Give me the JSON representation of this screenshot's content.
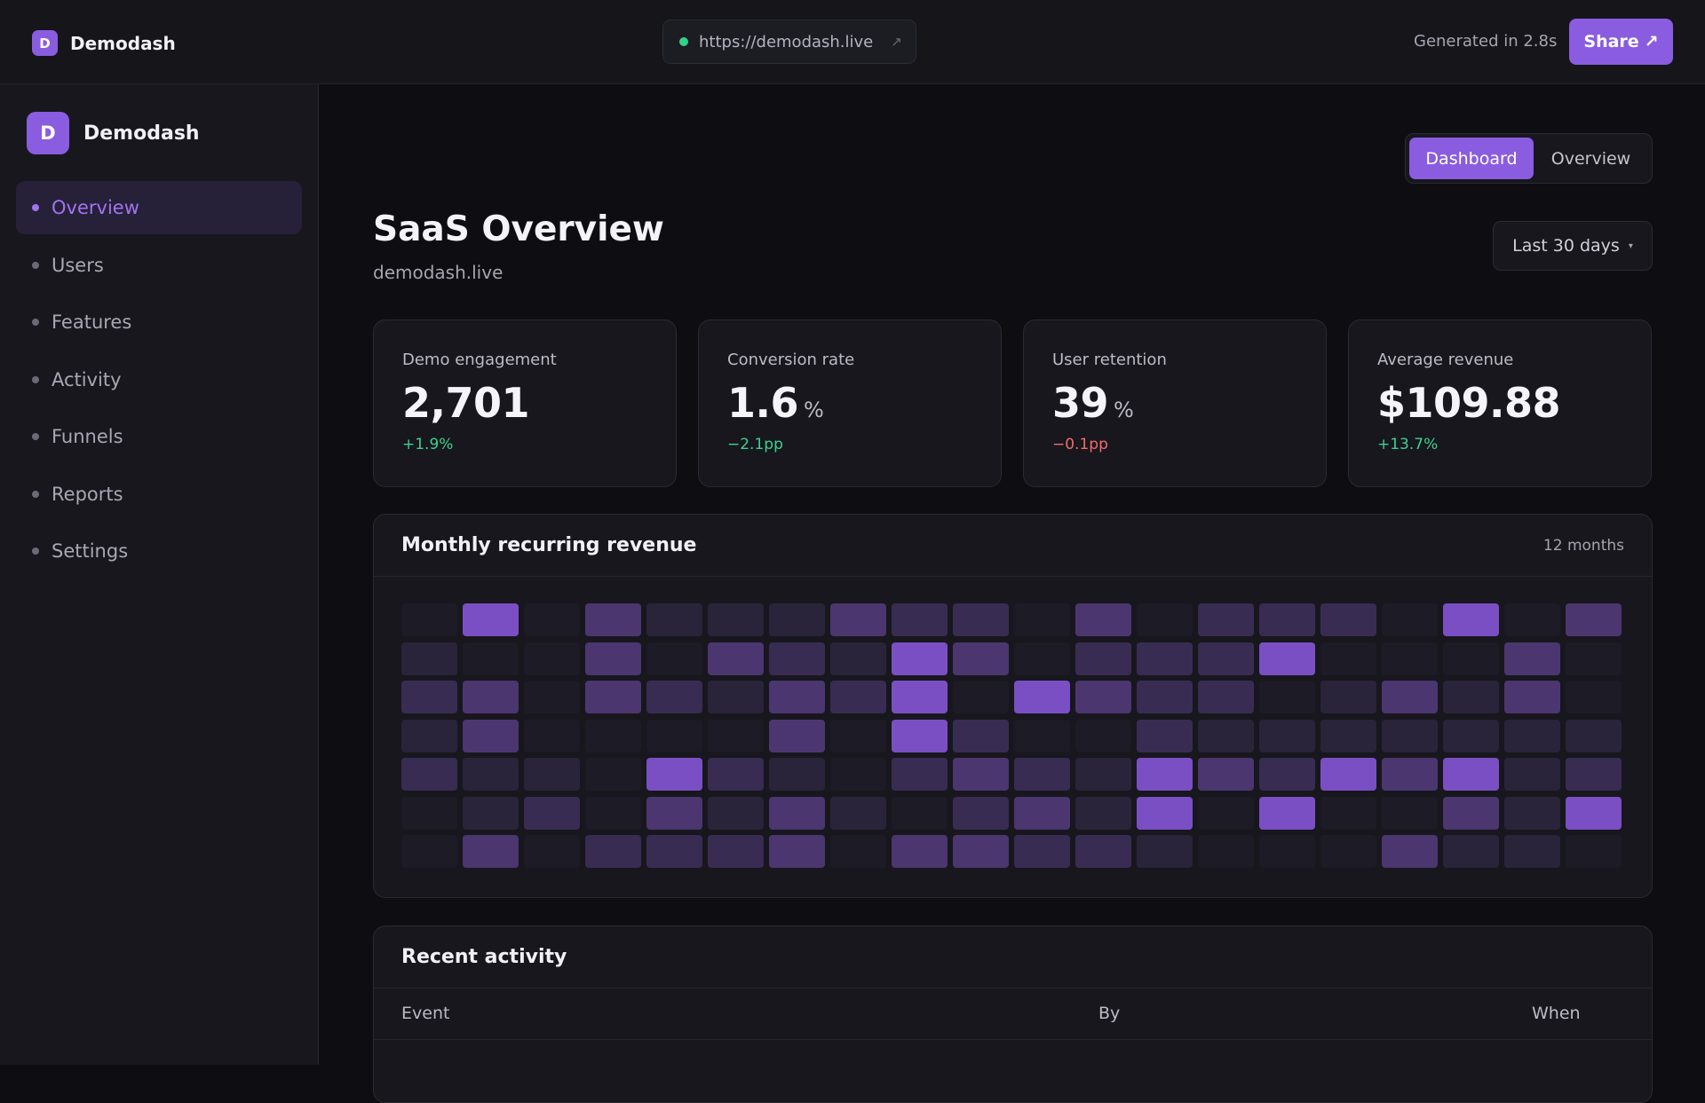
{
  "topbar": {
    "brand_initial": "D",
    "brand_name": "Demodash",
    "url": "https://demodash.live",
    "url_status_color": "#2fd38a",
    "generated_text": "Generated in 2.8s",
    "share_label": "Share",
    "share_icon": "↗",
    "url_icon": "↗"
  },
  "sidebar": {
    "brand_initial": "D",
    "brand_name": "Demodash",
    "items": [
      {
        "label": "Overview",
        "active": true
      },
      {
        "label": "Users",
        "active": false
      },
      {
        "label": "Features",
        "active": false
      },
      {
        "label": "Activity",
        "active": false
      },
      {
        "label": "Funnels",
        "active": false
      },
      {
        "label": "Reports",
        "active": false
      },
      {
        "label": "Settings",
        "active": false
      }
    ]
  },
  "view_toggle": {
    "active": "Dashboard",
    "inactive": "Overview"
  },
  "page": {
    "title": "SaaS Overview",
    "subtitle": "demodash.live"
  },
  "range": {
    "label": "Last 30 days",
    "caret": "▾"
  },
  "kpis": [
    {
      "label": "Demo engagement",
      "value": "2,701",
      "unit": "",
      "delta": "+1.9%",
      "trend": "up"
    },
    {
      "label": "Conversion rate",
      "value": "1.6",
      "unit": "%",
      "delta": "−2.1pp",
      "trend": "up"
    },
    {
      "label": "User retention",
      "value": "39",
      "unit": "%",
      "delta": "−0.1pp",
      "trend": "down"
    },
    {
      "label": "Average revenue",
      "value": "$109.88",
      "unit": "",
      "delta": "+13.7%",
      "trend": "up"
    }
  ],
  "colors": {
    "accent": "#8a5ce0",
    "positive": "#3ed08f",
    "negative": "#f26b6b",
    "heat_levels": [
      "#1d1b25",
      "#2a243a",
      "#392c53",
      "#4b3670",
      "#7a4fc4"
    ]
  },
  "mrr": {
    "title": "Monthly recurring revenue",
    "meta": "12 months",
    "heat_levels": [
      [
        0,
        4,
        0,
        3,
        1,
        1,
        1,
        3,
        2,
        2,
        0,
        3,
        0,
        2,
        2,
        2,
        0,
        4,
        0,
        3
      ],
      [
        1,
        0,
        0,
        3,
        0,
        3,
        2,
        1,
        4,
        3,
        0,
        2,
        2,
        2,
        4,
        0,
        0,
        0,
        3,
        0
      ],
      [
        2,
        3,
        0,
        3,
        2,
        1,
        3,
        2,
        4,
        0,
        4,
        3,
        2,
        2,
        0,
        1,
        3,
        1,
        3,
        0
      ],
      [
        1,
        3,
        0,
        0,
        0,
        0,
        3,
        0,
        4,
        2,
        0,
        0,
        2,
        1,
        1,
        1,
        1,
        1,
        1,
        1
      ],
      [
        2,
        1,
        1,
        0,
        4,
        2,
        1,
        0,
        2,
        3,
        2,
        1,
        4,
        3,
        2,
        4,
        3,
        4,
        1,
        2
      ],
      [
        0,
        1,
        2,
        0,
        3,
        1,
        3,
        1,
        0,
        2,
        3,
        1,
        4,
        0,
        4,
        0,
        0,
        3,
        1,
        4
      ],
      [
        0,
        3,
        0,
        2,
        2,
        2,
        3,
        0,
        3,
        3,
        2,
        2,
        1,
        0,
        0,
        0,
        3,
        1,
        1,
        0
      ]
    ]
  },
  "activity": {
    "title": "Recent activity",
    "columns": {
      "event": "Event",
      "by": "By",
      "when": "When"
    }
  }
}
